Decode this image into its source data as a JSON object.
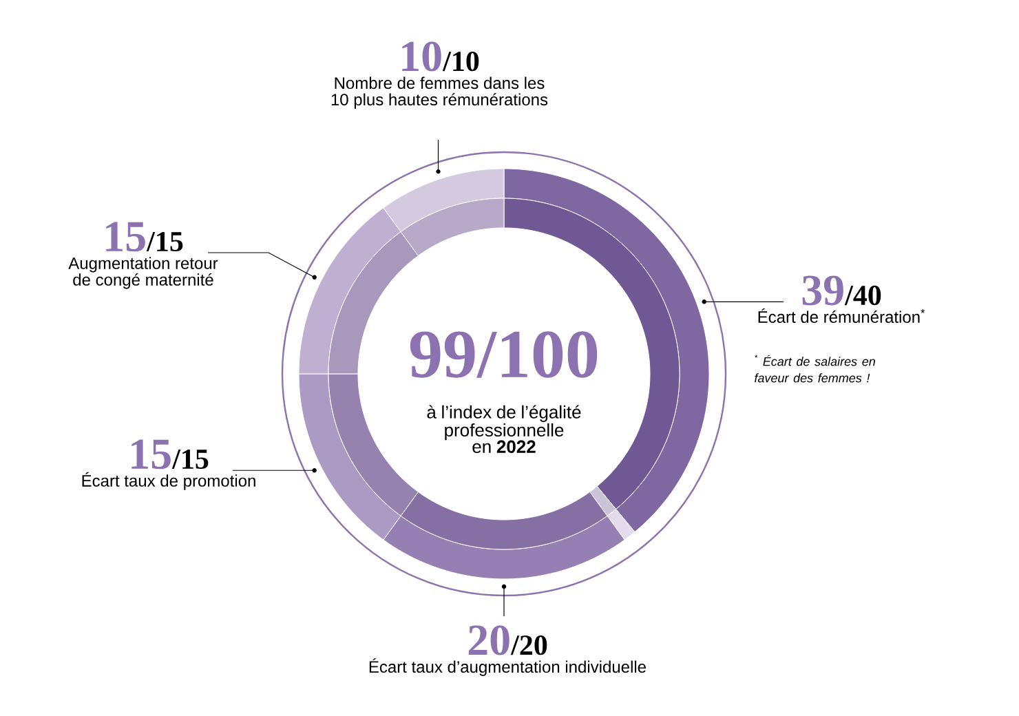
{
  "chart_data": {
    "type": "donut",
    "title": "99/100",
    "subtitle": "à l’index de l’égalité professionnelle en **2022**",
    "categories": [
      "Écart de rémunération$^{*}$",
      null,
      "Écart taux d’augmentation individuelle",
      "Écart taux de promotion",
      "Augmentation retour de congé maternité",
      "Nombre de femmes dans les 10 plus hautes rémunérations"
    ],
    "series": [
      {
        "values": [
          39,
          1,
          20,
          15,
          15,
          10
        ],
        "value_labels": [
          "39",
          null,
          "20",
          "15",
          "15",
          "10"
        ],
        "colors": [
          "#7f68a1",
          "#e4dcec",
          "#9680b3",
          "#ab9bc4",
          "#bfb0d2",
          "#d3cae0"
        ]
      },
      {
        "values": [
          39,
          1,
          20,
          15,
          15,
          10
        ],
        "colors": [
          "#6f5893",
          "#ccc2d9",
          "#8670a3",
          "#9682ae",
          "#a898bb",
          "#b7aac9"
        ]
      }
    ],
    "annotations": [
      "/40",
      "/20",
      "/15",
      "/15",
      "/10",
      "$^{*}$ Écart de salaires en faveur des femmes !"
    ]
  }
}
